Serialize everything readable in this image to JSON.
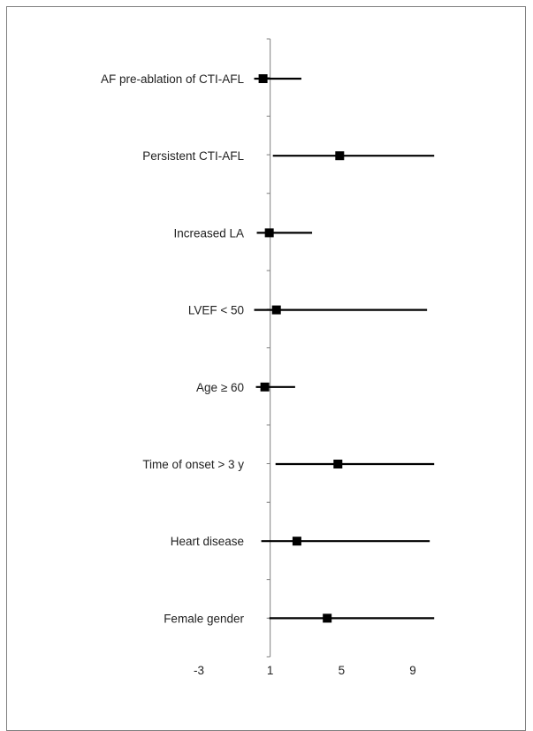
{
  "chart_data": {
    "type": "forest",
    "title": "",
    "xlabel": "",
    "ylabel": "",
    "xlim": [
      -3,
      11
    ],
    "xticks": [
      -3,
      1,
      5,
      9
    ],
    "reference_line": 1,
    "grid": false,
    "legend": "none",
    "categories": [
      "AF pre-ablation of CTI-AFL",
      "Persistent CTI-AFL",
      "Increased LA",
      "LVEF < 50",
      "Age ≥ 60",
      "Time of onset > 3 y",
      "Heart disease",
      "Female gender"
    ],
    "estimate": [
      0.6,
      4.9,
      0.95,
      1.35,
      0.7,
      4.8,
      2.5,
      4.2
    ],
    "lower": [
      0.1,
      1.15,
      0.25,
      0.1,
      0.2,
      1.3,
      0.5,
      0.95
    ],
    "upper": [
      2.75,
      10.2,
      3.35,
      9.8,
      2.4,
      10.2,
      9.95,
      10.2
    ],
    "colors": {
      "marker": "#000000",
      "line": "#000000",
      "axis": "#7f7f7f",
      "text": "#222222"
    }
  }
}
